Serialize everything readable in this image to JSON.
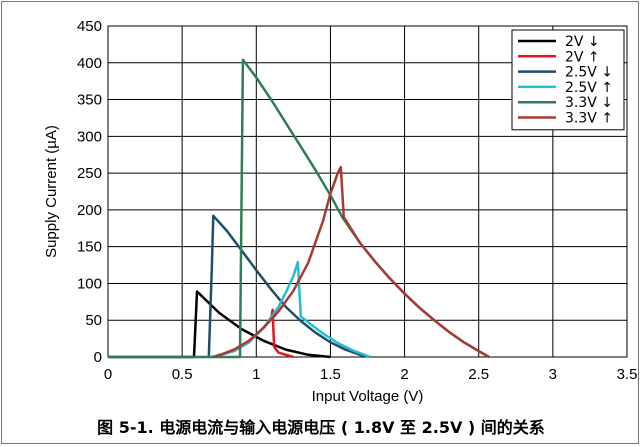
{
  "caption": "图 5-1. 电源电流与输入电源电压 ( 1.8V 至 2.5V ) 间的关系",
  "chart_data": {
    "type": "line",
    "xlabel": "Input Voltage (V)",
    "ylabel": "Supply Current (µA)",
    "xlim": [
      0,
      3.5
    ],
    "ylim": [
      0,
      450
    ],
    "xticks": [
      0,
      0.5,
      1,
      1.5,
      2,
      2.5,
      3,
      3.5
    ],
    "yticks": [
      0,
      50,
      100,
      150,
      200,
      250,
      300,
      350,
      400,
      450
    ],
    "xtick_labels": [
      "0",
      "0.5",
      "1",
      "1.5",
      "2",
      "2.5",
      "3",
      "3.5"
    ],
    "ytick_labels": [
      "0",
      "50",
      "100",
      "150",
      "200",
      "250",
      "300",
      "350",
      "400",
      "450"
    ],
    "grid": "major vertical and horizontal",
    "legend_position": "top-right",
    "series": [
      {
        "name": "2V ↓",
        "color": "#000000",
        "points": [
          [
            0,
            0
          ],
          [
            0.58,
            0
          ],
          [
            0.6,
            89
          ],
          [
            0.75,
            60
          ],
          [
            0.9,
            38
          ],
          [
            1.05,
            22
          ],
          [
            1.2,
            10
          ],
          [
            1.35,
            3
          ],
          [
            1.5,
            0
          ]
        ]
      },
      {
        "name": "2V ↑",
        "color": "#e8141c",
        "points": [
          [
            0.7,
            0
          ],
          [
            0.85,
            8
          ],
          [
            0.95,
            20
          ],
          [
            1.05,
            40
          ],
          [
            1.1,
            52
          ],
          [
            1.11,
            64
          ],
          [
            1.12,
            14
          ],
          [
            1.15,
            6
          ],
          [
            1.2,
            3
          ],
          [
            1.25,
            0
          ]
        ]
      },
      {
        "name": "2.5V ↓",
        "color": "#1f4e6b",
        "points": [
          [
            0.68,
            0
          ],
          [
            0.7,
            120
          ],
          [
            0.71,
            192
          ],
          [
            0.8,
            172
          ],
          [
            0.9,
            145
          ],
          [
            1.0,
            118
          ],
          [
            1.1,
            92
          ],
          [
            1.2,
            68
          ],
          [
            1.3,
            49
          ],
          [
            1.4,
            33
          ],
          [
            1.5,
            20
          ],
          [
            1.6,
            10
          ],
          [
            1.7,
            3
          ],
          [
            1.77,
            0
          ]
        ]
      },
      {
        "name": "2.5V ↑",
        "color": "#27bcd0",
        "points": [
          [
            0.7,
            0
          ],
          [
            0.85,
            8
          ],
          [
            0.95,
            20
          ],
          [
            1.05,
            40
          ],
          [
            1.15,
            68
          ],
          [
            1.2,
            88
          ],
          [
            1.25,
            110
          ],
          [
            1.28,
            129
          ],
          [
            1.3,
            55
          ],
          [
            1.35,
            47
          ],
          [
            1.45,
            32
          ],
          [
            1.55,
            19
          ],
          [
            1.65,
            9
          ],
          [
            1.77,
            0
          ]
        ]
      },
      {
        "name": "3.3V ↓",
        "color": "#2e7d55",
        "points": [
          [
            0,
            0
          ],
          [
            0.89,
            0
          ],
          [
            0.91,
            404
          ],
          [
            1.0,
            380
          ],
          [
            1.1,
            350
          ],
          [
            1.2,
            318
          ],
          [
            1.3,
            286
          ],
          [
            1.4,
            254
          ],
          [
            1.5,
            220
          ],
          [
            1.58,
            190
          ],
          [
            1.7,
            155
          ],
          [
            1.8,
            130
          ],
          [
            1.9,
            107
          ],
          [
            2.0,
            86
          ],
          [
            2.1,
            67
          ],
          [
            2.2,
            50
          ],
          [
            2.3,
            34
          ],
          [
            2.4,
            20
          ],
          [
            2.5,
            8
          ],
          [
            2.57,
            0
          ]
        ]
      },
      {
        "name": "3.3V ↑",
        "color": "#a83a36",
        "points": [
          [
            0.72,
            0
          ],
          [
            0.85,
            10
          ],
          [
            0.95,
            22
          ],
          [
            1.05,
            40
          ],
          [
            1.15,
            62
          ],
          [
            1.25,
            90
          ],
          [
            1.35,
            128
          ],
          [
            1.45,
            185
          ],
          [
            1.5,
            222
          ],
          [
            1.55,
            250
          ],
          [
            1.57,
            258
          ],
          [
            1.59,
            190
          ],
          [
            1.7,
            155
          ],
          [
            1.8,
            130
          ],
          [
            1.9,
            107
          ],
          [
            2.0,
            86
          ],
          [
            2.1,
            67
          ],
          [
            2.2,
            50
          ],
          [
            2.3,
            34
          ],
          [
            2.4,
            20
          ],
          [
            2.5,
            8
          ],
          [
            2.57,
            0
          ]
        ]
      }
    ]
  }
}
